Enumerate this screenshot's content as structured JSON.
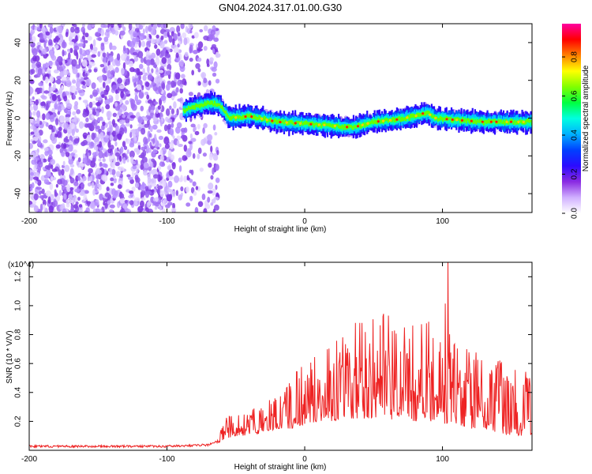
{
  "title": "GN04.2024.317.01.00.G30",
  "chart_data": [
    {
      "type": "heatmap",
      "name": "spectrogram",
      "xlabel": "Height of straight line (km)",
      "ylabel": "Frequency (Hz)",
      "xlim": [
        -200,
        165
      ],
      "ylim": [
        -50,
        50
      ],
      "xticks": [
        -200,
        -100,
        0,
        100
      ],
      "xtick_labels": [
        "-200",
        "-100",
        "0",
        "100"
      ],
      "yticks": [
        -40,
        -20,
        0,
        20,
        40
      ],
      "ytick_labels": [
        "-40",
        "-20",
        "0",
        "20",
        "40"
      ],
      "colorbar": {
        "label": "Normalized spectral amplitude",
        "range": [
          0,
          0.97
        ],
        "ticks": [
          0,
          0.2,
          0.4,
          0.6,
          0.8
        ],
        "tick_labels": [
          "0.0",
          "0.2",
          "0.4",
          "0.6",
          "0.8"
        ],
        "colormap": [
          "#ffffff",
          "#d0b0ff",
          "#8a2be2",
          "#2b0bff",
          "#0040ff",
          "#00b0ff",
          "#00ffe0",
          "#00ff40",
          "#80ff00",
          "#ffff00",
          "#ff8000",
          "#ff0000",
          "#ff00a0"
        ]
      },
      "noise_region_x": [
        -200,
        -63
      ],
      "ridge": {
        "x": [
          -88,
          -80,
          -70,
          -62,
          -55,
          -40,
          -20,
          0,
          20,
          35,
          50,
          65,
          80,
          88,
          95,
          110,
          130,
          150,
          165
        ],
        "y": [
          4,
          6,
          8,
          7,
          0,
          1,
          -2,
          -3,
          -4,
          -5,
          -2,
          -1,
          1,
          3,
          0,
          -1,
          -2,
          -2,
          -2
        ]
      }
    },
    {
      "type": "line",
      "name": "snr",
      "xlabel": "Height of straight line (km)",
      "ylabel": "SNR (10 * V/V)",
      "y_multiplier": "(x10^4)",
      "xlim": [
        -200,
        165
      ],
      "ylim": [
        0,
        1.3
      ],
      "xticks": [
        -200,
        -100,
        0,
        100
      ],
      "xtick_labels": [
        "-200",
        "-100",
        "0",
        "100"
      ],
      "yticks": [
        0.2,
        0.4,
        0.6,
        0.8,
        1.0,
        1.2
      ],
      "ytick_labels": [
        "0.2",
        "0.4",
        "0.6",
        "0.8",
        "1.0",
        "1.2"
      ],
      "line_color": "#ee2222",
      "series": [
        {
          "x": [
            -200,
            -150,
            -100,
            -70,
            -63,
            -58,
            -50,
            -40,
            -30,
            -20,
            -10,
            0,
            10,
            20,
            30,
            40,
            50,
            60,
            70,
            80,
            90,
            100,
            104,
            110,
            120,
            130,
            140,
            150,
            160,
            165
          ],
          "envelope": [
            0.03,
            0.03,
            0.03,
            0.04,
            0.08,
            0.22,
            0.26,
            0.28,
            0.32,
            0.42,
            0.52,
            0.62,
            0.7,
            0.78,
            0.85,
            0.9,
            0.95,
            0.95,
            0.85,
            0.9,
            0.9,
            0.85,
            1.3,
            0.82,
            0.75,
            0.7,
            0.65,
            0.6,
            0.55,
            0.5
          ],
          "baseline": [
            0.02,
            0.02,
            0.02,
            0.03,
            0.05,
            0.08,
            0.1,
            0.1,
            0.12,
            0.15,
            0.15,
            0.18,
            0.2,
            0.2,
            0.22,
            0.22,
            0.22,
            0.22,
            0.2,
            0.2,
            0.2,
            0.18,
            0.18,
            0.18,
            0.15,
            0.15,
            0.12,
            0.1,
            0.1,
            0.1
          ]
        }
      ]
    }
  ]
}
